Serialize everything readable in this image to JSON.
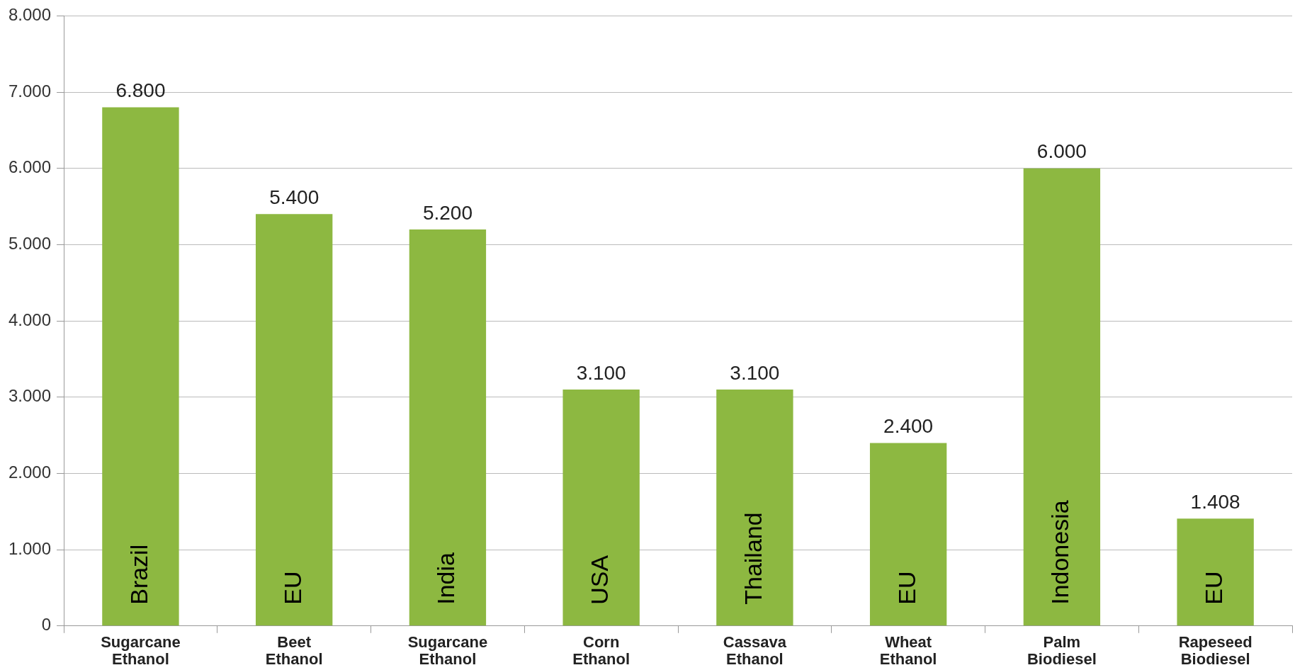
{
  "chart_data": {
    "type": "bar",
    "categories": [
      "Sugarcane Ethanol",
      "Beet Ethanol",
      "Sugarcane Ethanol",
      "Corn Ethanol",
      "Cassava Ethanol",
      "Wheat Ethanol",
      "Palm Biodiesel",
      "Rapeseed Biodiesel"
    ],
    "values": [
      6800,
      5400,
      5200,
      3100,
      3100,
      2400,
      6000,
      1408
    ],
    "value_labels": [
      "6.800",
      "5.400",
      "5.200",
      "3.100",
      "3.100",
      "2.400",
      "6.000",
      "1.408"
    ],
    "color": "#8db841",
    "ylim": [
      0,
      8000
    ],
    "yticks": [
      0,
      {
        "value": 1000,
        "label": "1.000"
      },
      {
        "value": 2000,
        "label": "2.000"
      },
      {
        "value": 3000,
        "label": "3.000"
      },
      {
        "value": 4000,
        "label": "4.000"
      },
      {
        "value": 5000,
        "label": "5.000"
      },
      {
        "value": 6000,
        "label": "6.000"
      },
      {
        "value": 7000,
        "label": "7.000"
      },
      {
        "value": 8000,
        "label": "8.000"
      }
    ],
    "grid": "y",
    "annotations": [
      "Brazil",
      "EU",
      "India",
      "USA",
      "Thailand",
      "EU",
      "Indonesia",
      "EU"
    ]
  }
}
